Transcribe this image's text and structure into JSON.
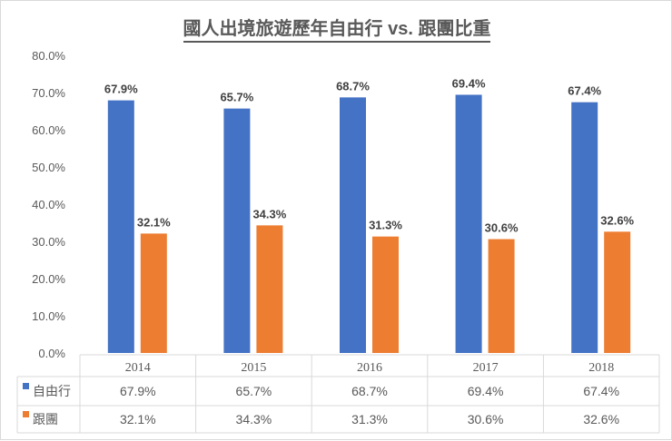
{
  "chart_data": {
    "type": "bar",
    "title": "國人出境旅遊歷年自由行 vs. 跟團比重",
    "categories": [
      "2014",
      "2015",
      "2016",
      "2017",
      "2018"
    ],
    "series": [
      {
        "name": "自由行",
        "color": "#4472c4",
        "values": [
          67.9,
          65.7,
          68.7,
          69.4,
          67.4
        ],
        "labels": [
          "67.9%",
          "65.7%",
          "68.7%",
          "69.4%",
          "67.4%"
        ]
      },
      {
        "name": "跟團",
        "color": "#ed7d31",
        "values": [
          32.1,
          34.3,
          31.3,
          30.6,
          32.6
        ],
        "labels": [
          "32.1%",
          "34.3%",
          "31.3%",
          "30.6%",
          "32.6%"
        ]
      }
    ],
    "ylim": [
      0,
      80
    ],
    "yticks": [
      "0.0%",
      "10.0%",
      "20.0%",
      "30.0%",
      "40.0%",
      "50.0%",
      "60.0%",
      "70.0%",
      "80.0%"
    ],
    "grid": false,
    "legend": "data-table"
  }
}
